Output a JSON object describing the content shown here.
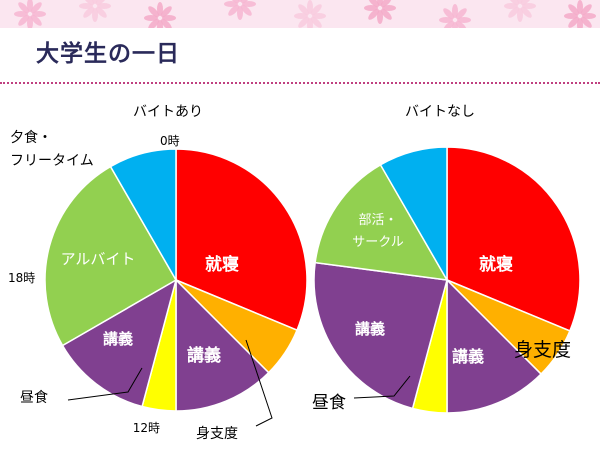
{
  "title": "大学生の一日",
  "colors": {
    "sleep": "#ff0000",
    "prep": "#ffb000",
    "lecture": "#804090",
    "lunch": "#ffff00",
    "activity": "#92d050",
    "dinner": "#00b0f0"
  },
  "chart_data": [
    {
      "type": "pie",
      "title": "バイトあり",
      "slices": [
        {
          "label": "就寝",
          "value": 7.5,
          "color": "#ff0000",
          "label_color": "#ffffff",
          "bold": true
        },
        {
          "label": "身支度",
          "value": 1.5,
          "color": "#ffb000",
          "label_color": "#000000"
        },
        {
          "label": "講義",
          "value": 3.0,
          "color": "#804090",
          "label_color": "#ffffff",
          "bold": true
        },
        {
          "label": "昼食",
          "value": 1.0,
          "color": "#ffff00",
          "label_color": "#000000"
        },
        {
          "label": "講義",
          "value": 3.0,
          "color": "#804090",
          "label_color": "#ffffff",
          "bold": true
        },
        {
          "label": "アルバイト",
          "value": 6.0,
          "color": "#92d050",
          "label_color": "#ffffff"
        },
        {
          "label": "夕食・フリータイム",
          "value": 2.0,
          "color": "#00b0f0",
          "label_color": "#000000"
        }
      ],
      "time_labels": [
        "0時",
        "12時",
        "18時"
      ]
    },
    {
      "type": "pie",
      "title": "バイトなし",
      "slices": [
        {
          "label": "就寝",
          "value": 7.5,
          "color": "#ff0000",
          "label_color": "#ffffff",
          "bold": true
        },
        {
          "label": "身支度",
          "value": 1.5,
          "color": "#ffb000",
          "label_color": "#000000"
        },
        {
          "label": "講義",
          "value": 3.0,
          "color": "#804090",
          "label_color": "#ffffff",
          "bold": true
        },
        {
          "label": "昼食",
          "value": 1.0,
          "color": "#ffff00",
          "label_color": "#000000"
        },
        {
          "label": "講義",
          "value": 5.5,
          "color": "#804090",
          "label_color": "#ffffff",
          "bold": true
        },
        {
          "label": "部活・サークル",
          "value": 3.5,
          "color": "#92d050",
          "label_color": "#ffffff"
        },
        {
          "label": "",
          "value": 2.0,
          "color": "#00b0f0",
          "label_color": "#000000"
        }
      ]
    }
  ]
}
